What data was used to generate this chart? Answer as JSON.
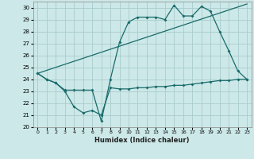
{
  "title": "",
  "xlabel": "Humidex (Indice chaleur)",
  "ylabel": "",
  "bg_color": "#cce8e8",
  "grid_color": "#aacccc",
  "line_color": "#1a6b6b",
  "xlim": [
    -0.5,
    23.5
  ],
  "ylim": [
    20,
    30.5
  ],
  "yticks": [
    20,
    21,
    22,
    23,
    24,
    25,
    26,
    27,
    28,
    29,
    30
  ],
  "xticks": [
    0,
    1,
    2,
    3,
    4,
    5,
    6,
    7,
    8,
    9,
    10,
    11,
    12,
    13,
    14,
    15,
    16,
    17,
    18,
    19,
    20,
    21,
    22,
    23
  ],
  "line1_x": [
    0,
    1,
    2,
    3,
    4,
    5,
    6,
    7,
    8,
    9,
    10,
    11,
    12,
    13,
    14,
    15,
    16,
    17,
    18,
    19,
    20,
    21,
    22,
    23
  ],
  "line1_y": [
    24.5,
    24.0,
    23.7,
    23.1,
    23.1,
    23.1,
    23.1,
    20.5,
    24.0,
    27.1,
    28.8,
    29.2,
    29.2,
    29.2,
    29.0,
    30.2,
    29.3,
    29.3,
    30.1,
    29.7,
    28.0,
    26.4,
    24.7,
    24.0
  ],
  "line2_x": [
    0,
    1,
    2,
    3,
    4,
    5,
    6,
    7,
    8,
    9,
    10,
    11,
    12,
    13,
    14,
    15,
    16,
    17,
    18,
    19,
    20,
    21,
    22,
    23
  ],
  "line2_y": [
    24.5,
    24.0,
    23.7,
    23.0,
    21.7,
    21.2,
    21.4,
    21.0,
    23.3,
    23.2,
    23.2,
    23.3,
    23.3,
    23.4,
    23.4,
    23.5,
    23.5,
    23.6,
    23.7,
    23.8,
    23.9,
    23.9,
    24.0,
    24.0
  ],
  "line3_x": [
    0,
    23
  ],
  "line3_y": [
    24.5,
    30.3
  ]
}
